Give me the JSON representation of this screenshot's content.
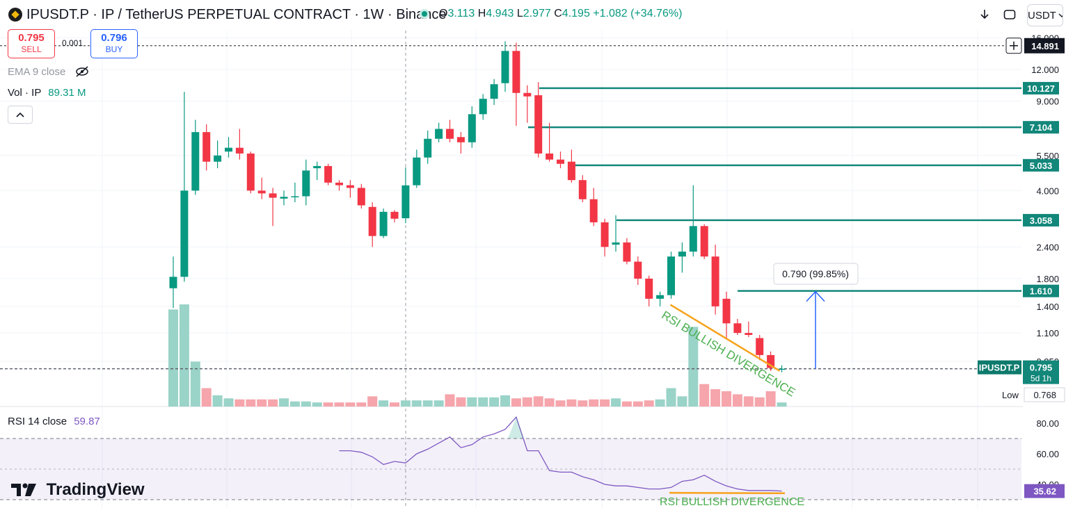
{
  "header": {
    "symbol_title": "IPUSDT.P · IP / TetherUS PERPETUAL CONTRACT · 1W · Binance",
    "ohlc": {
      "o_label": "O",
      "o": "3.113",
      "h_label": "H",
      "h": "4.943",
      "l_label": "L",
      "l": "2.977",
      "c_label": "C",
      "c": "4.195",
      "change": "+1.082 (+34.76%)"
    },
    "currency": "USDT",
    "icons": [
      "download-icon",
      "fullscreen-icon",
      "chevron-down-icon"
    ]
  },
  "trade": {
    "sell_price": "0.795",
    "sell_label": "SELL",
    "buy_price": "0.796",
    "buy_label": "BUY",
    "spread": "0.001"
  },
  "legend": {
    "ema_label": "EMA 9 close",
    "vol_label": "Vol · IP",
    "vol_value": "89.31 M",
    "rsi_label": "RSI 14 close",
    "rsi_value": "59.87"
  },
  "branding": {
    "watermark": "TradingView"
  },
  "colors": {
    "up": "#089981",
    "down": "#f23645",
    "level": "#12877a",
    "rsi_line": "#7e57c2",
    "divergence": "#f7a21b",
    "annotation_green": "#4caf50",
    "measure": "#2962ff"
  },
  "chart_data": {
    "type": "candlestick",
    "interval": "1W",
    "symbol": "IPUSDT.P",
    "y_scale": "log",
    "y_ticks": [
      "16.000",
      "12.000",
      "9.000",
      "5.500",
      "4.000",
      "2.400",
      "1.800",
      "1.400",
      "1.100",
      "0.850"
    ],
    "candles": [
      [
        1.65,
        2.2,
        1.38,
        1.83
      ],
      [
        1.83,
        9.8,
        1.75,
        4.0
      ],
      [
        4.0,
        7.6,
        3.85,
        6.8
      ],
      [
        6.8,
        7.3,
        4.8,
        5.2
      ],
      [
        5.2,
        6.3,
        4.9,
        5.5
      ],
      [
        5.7,
        6.5,
        5.4,
        5.9
      ],
      [
        5.9,
        7.0,
        5.3,
        5.6
      ],
      [
        5.6,
        5.7,
        3.9,
        4.0
      ],
      [
        4.0,
        4.5,
        3.7,
        3.9
      ],
      [
        3.9,
        4.1,
        2.9,
        3.75
      ],
      [
        3.72,
        4.0,
        3.5,
        3.78
      ],
      [
        3.78,
        4.3,
        3.6,
        3.8
      ],
      [
        3.8,
        5.3,
        3.5,
        4.8
      ],
      [
        4.9,
        5.2,
        4.4,
        5.0
      ],
      [
        5.0,
        5.1,
        4.2,
        4.3
      ],
      [
        4.3,
        4.4,
        4.0,
        4.2
      ],
      [
        4.2,
        4.4,
        3.75,
        4.1
      ],
      [
        4.1,
        4.25,
        3.4,
        3.5
      ],
      [
        3.45,
        3.6,
        2.4,
        2.65
      ],
      [
        2.65,
        3.4,
        2.6,
        3.3
      ],
      [
        3.3,
        3.35,
        3.0,
        3.1
      ],
      [
        3.113,
        4.943,
        2.977,
        4.195
      ],
      [
        4.2,
        5.8,
        4.1,
        5.4
      ],
      [
        5.4,
        6.9,
        5.1,
        6.4
      ],
      [
        6.4,
        7.4,
        6.2,
        7.0
      ],
      [
        7.0,
        7.6,
        6.2,
        6.4
      ],
      [
        6.5,
        6.8,
        5.6,
        6.2
      ],
      [
        6.2,
        8.6,
        5.9,
        8.0
      ],
      [
        8.0,
        9.6,
        7.6,
        9.2
      ],
      [
        9.2,
        11.0,
        8.7,
        10.5
      ],
      [
        10.6,
        15.5,
        9.8,
        14.2
      ],
      [
        14.2,
        15.3,
        7.2,
        9.7
      ],
      [
        9.7,
        10.4,
        7.4,
        9.4
      ],
      [
        9.5,
        10.7,
        5.4,
        5.6
      ],
      [
        5.6,
        7.4,
        5.2,
        5.3
      ],
      [
        5.3,
        5.7,
        4.9,
        5.1
      ],
      [
        5.2,
        5.8,
        4.3,
        4.4
      ],
      [
        4.4,
        4.6,
        3.6,
        3.7
      ],
      [
        3.7,
        4.1,
        2.9,
        3.0
      ],
      [
        3.0,
        3.1,
        2.2,
        2.4
      ],
      [
        2.45,
        3.2,
        2.3,
        2.5
      ],
      [
        2.5,
        2.6,
        2.05,
        2.1
      ],
      [
        2.1,
        2.2,
        1.7,
        1.8
      ],
      [
        1.8,
        1.85,
        1.4,
        1.5
      ],
      [
        1.5,
        1.6,
        1.4,
        1.55
      ],
      [
        1.55,
        2.3,
        1.5,
        2.2
      ],
      [
        2.2,
        2.5,
        1.9,
        2.3
      ],
      [
        2.3,
        4.2,
        2.2,
        2.9
      ],
      [
        2.9,
        2.95,
        2.15,
        2.2
      ],
      [
        2.2,
        2.45,
        1.3,
        1.4
      ],
      [
        1.5,
        1.6,
        1.05,
        1.2
      ],
      [
        1.2,
        1.25,
        1.08,
        1.1
      ],
      [
        1.1,
        1.22,
        1.06,
        1.08
      ],
      [
        1.05,
        1.08,
        0.86,
        0.9
      ],
      [
        0.9,
        0.93,
        0.78,
        0.8
      ],
      [
        0.79,
        0.82,
        0.77,
        0.795
      ]
    ],
    "volume": [
      95,
      100,
      44,
      18,
      11,
      8,
      7,
      7,
      7,
      7,
      8,
      5,
      5,
      4,
      4,
      4,
      4,
      4,
      10,
      6,
      4,
      6,
      6,
      6,
      6,
      12,
      9,
      9,
      9,
      9,
      11,
      8,
      9,
      10,
      8,
      6,
      7,
      6,
      7,
      7,
      8,
      5,
      5,
      6,
      7,
      18,
      10,
      78,
      22,
      17,
      15,
      12,
      10,
      9,
      15,
      4
    ],
    "price_levels": [
      "10.127",
      "7.104",
      "5.033",
      "3.058",
      "1.610"
    ],
    "current_price": {
      "symbol_label": "IPUSDT.P",
      "value": "0.795",
      "countdown": "5d 1h"
    },
    "crosshair_price": "14.891",
    "low_label": "Low",
    "low_value": "0.768",
    "measure": {
      "label": "0.790 (99.85%)"
    },
    "annotations": [
      "RSI BULLISH DIVERGENCE",
      "RSI BULLISH DIVERGENCE"
    ],
    "rsi": {
      "values": [
        62,
        62,
        61,
        58,
        53,
        55,
        54,
        60,
        63,
        67,
        71,
        64,
        66,
        71,
        73,
        76,
        84,
        62,
        62,
        49,
        48,
        48,
        45,
        43,
        40,
        39,
        39,
        38,
        37,
        37,
        38,
        42,
        43,
        46,
        42,
        39,
        37,
        36,
        36,
        36,
        35.62
      ],
      "start_index": 15,
      "ticks": [
        "80.00",
        "60.00",
        "40.00"
      ],
      "upper_band": 70,
      "lower_band": 30,
      "current_value": "35.62"
    }
  }
}
